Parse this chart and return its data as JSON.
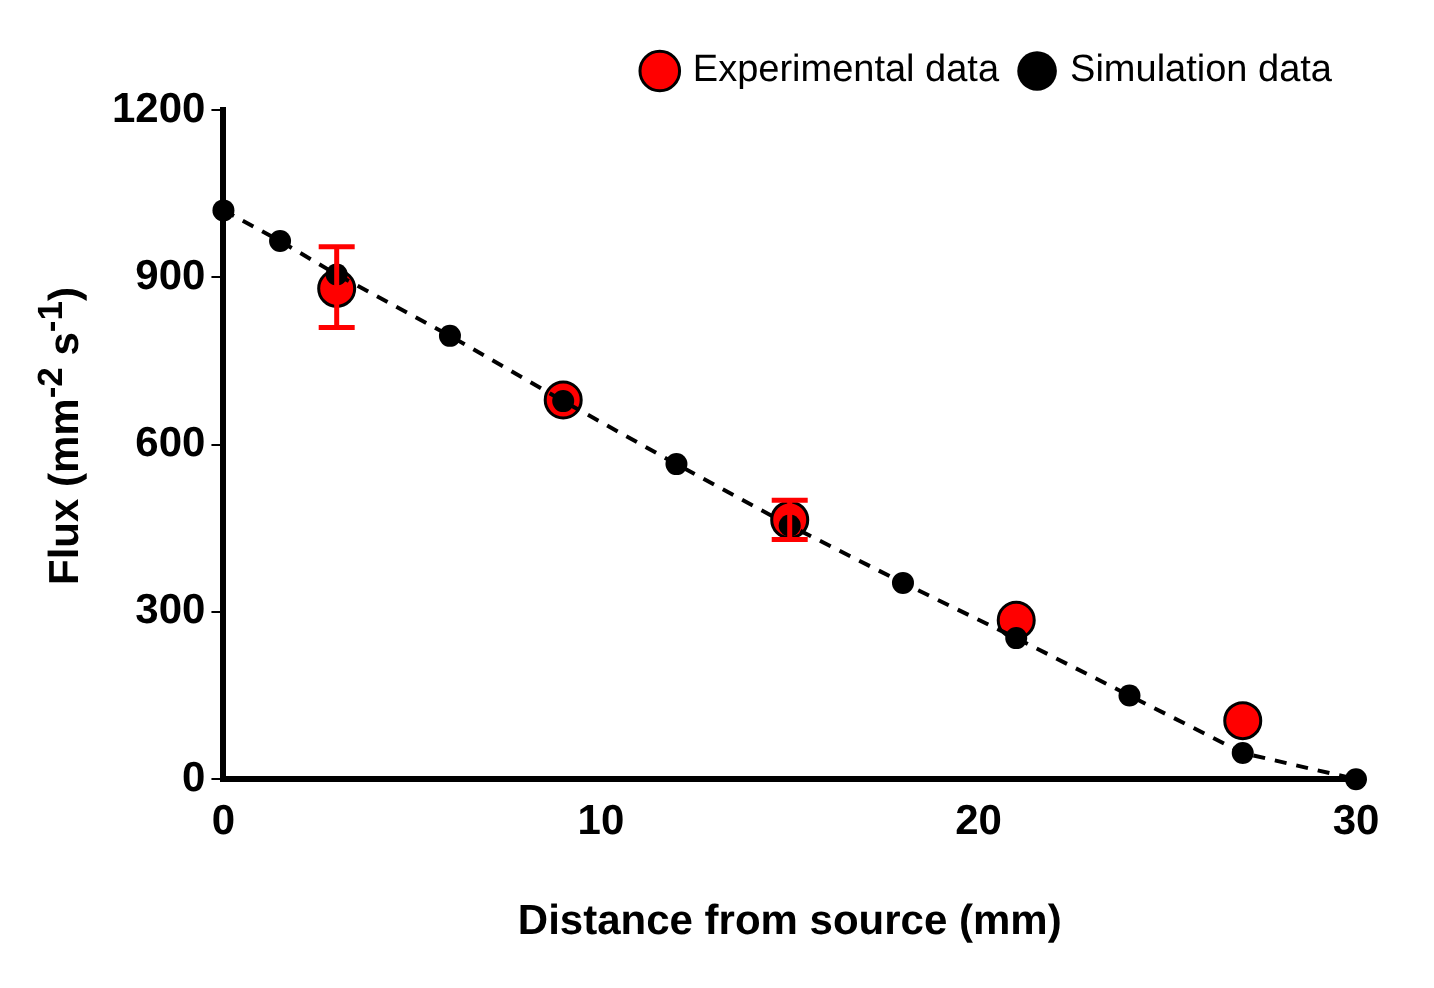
{
  "chart_data": {
    "type": "scatter",
    "xlabel": "Distance from source (mm)",
    "ylabel": "Flux (mm$^{-2}$ s$^{-1}$)",
    "xlim": [
      0,
      30
    ],
    "xticks": [
      0,
      10,
      20,
      30
    ],
    "ylim": [
      0,
      1200
    ],
    "yticks": [
      0,
      300,
      600,
      900,
      1200
    ],
    "grid": false,
    "legend": "top right",
    "series": [
      {
        "name": "Experimental data",
        "type": "scatter",
        "color": "#ff0000",
        "marker": "circle",
        "x": [
          3,
          9,
          15,
          21,
          27
        ],
        "values": [
          880,
          680,
          465,
          285,
          105
        ],
        "errors": [
          [
            810,
            955
          ],
          null,
          [
            430,
            500
          ],
          null,
          null
        ]
      },
      {
        "name": "Simulation data",
        "type": "line",
        "color": "#000000",
        "marker": "circle",
        "line_style": "dashed",
        "x": [
          0,
          1.5,
          3,
          6,
          9,
          12,
          15,
          18,
          21,
          24,
          27,
          30
        ],
        "values": [
          1020,
          965,
          905,
          795,
          678,
          565,
          455,
          352,
          253,
          150,
          47,
          0
        ]
      }
    ]
  }
}
